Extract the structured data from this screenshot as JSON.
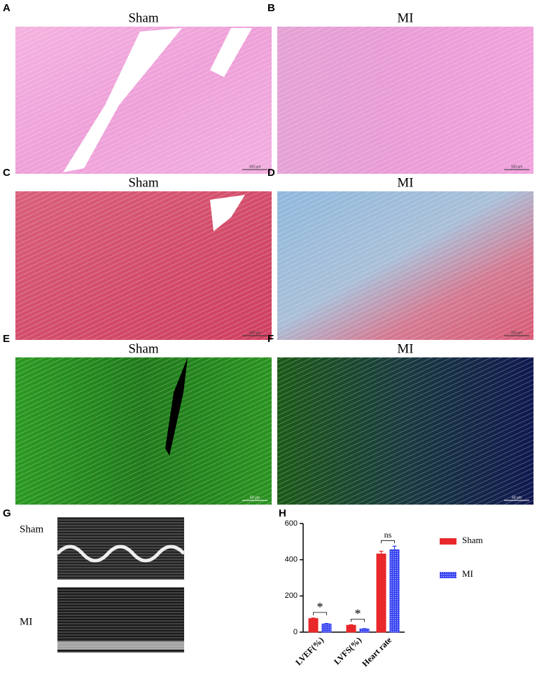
{
  "panels": [
    {
      "letter": "A",
      "title": "Sham",
      "scale": "100 μm"
    },
    {
      "letter": "B",
      "title": "MI",
      "scale": "100 μm"
    },
    {
      "letter": "C",
      "title": "Sham",
      "scale": "100 μm"
    },
    {
      "letter": "D",
      "title": "MI",
      "scale": "100 μm"
    },
    {
      "letter": "E",
      "title": "Sham",
      "scale": "50 μm"
    },
    {
      "letter": "F",
      "title": "MI",
      "scale": "50 μm"
    }
  ],
  "echo": {
    "letter": "G",
    "labels": [
      "Sham",
      "MI"
    ]
  },
  "chart_data": {
    "type": "bar",
    "letter": "H",
    "categories": [
      "LVEF(%)",
      "LVFS(%)",
      "Heart rate"
    ],
    "series": [
      {
        "name": "Sham",
        "color": "#e8282a",
        "values": [
          75,
          38,
          432
        ],
        "errors": [
          3,
          3,
          15
        ]
      },
      {
        "name": "MI",
        "color": "#2f3cf0",
        "values": [
          45,
          18,
          455
        ],
        "errors": [
          3,
          2,
          20
        ]
      }
    ],
    "annotations": [
      "*",
      "*",
      "ns"
    ],
    "ylim": [
      0,
      600
    ],
    "yticks": [
      0,
      200,
      400,
      600
    ]
  }
}
